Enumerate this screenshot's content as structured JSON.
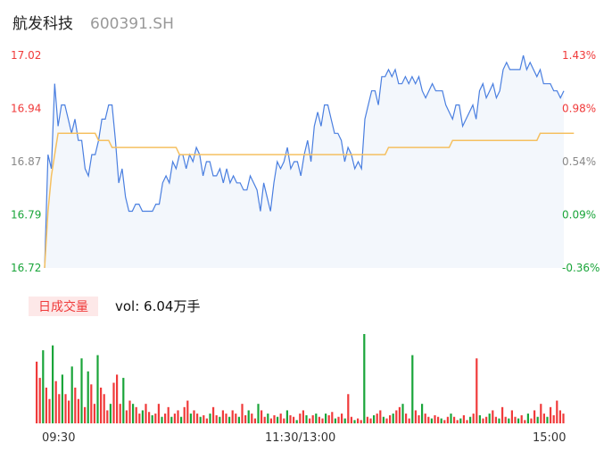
{
  "header": {
    "name": "航发科技",
    "code": "600391.SH"
  },
  "colors": {
    "price_line": "#4a7fe0",
    "avg_line": "#f5c060",
    "up": "#f03a3a",
    "down": "#1aa53a",
    "neutral": "#888888"
  },
  "volume_panel": {
    "tag": "日成交量",
    "vol_text": "vol: 6.04万手"
  },
  "chart_data": [
    {
      "type": "line",
      "x_ticks": [
        "09:30",
        "11:30/13:00",
        "15:00"
      ],
      "y_left_ticks": [
        "17.02",
        "16.94",
        "16.87",
        "16.79",
        "16.72"
      ],
      "y_right_ticks": [
        "1.43%",
        "0.98%",
        "0.54%",
        "0.09%",
        "-0.36%"
      ],
      "ylim": [
        16.72,
        17.02
      ],
      "series": [
        {
          "values": [
            16.72,
            16.88,
            16.86,
            16.98,
            16.92,
            16.95,
            16.95,
            16.93,
            16.91,
            16.93,
            16.9,
            16.9,
            16.86,
            16.85,
            16.88,
            16.88,
            16.9,
            16.93,
            16.93,
            16.95,
            16.95,
            16.9,
            16.84,
            16.86,
            16.82,
            16.8,
            16.8,
            16.81,
            16.81,
            16.8,
            16.8,
            16.8,
            16.8,
            16.81,
            16.81,
            16.84,
            16.85,
            16.84,
            16.87,
            16.86,
            16.88,
            16.88,
            16.86,
            16.88,
            16.87,
            16.89,
            16.88,
            16.85,
            16.87,
            16.87,
            16.85,
            16.85,
            16.86,
            16.84,
            16.86,
            16.84,
            16.85,
            16.84,
            16.84,
            16.83,
            16.83,
            16.85,
            16.84,
            16.83,
            16.8,
            16.84,
            16.82,
            16.8,
            16.84,
            16.87,
            16.86,
            16.87,
            16.89,
            16.86,
            16.87,
            16.87,
            16.85,
            16.88,
            16.9,
            16.87,
            16.92,
            16.94,
            16.92,
            16.95,
            16.95,
            16.93,
            16.91,
            16.91,
            16.9,
            16.87,
            16.89,
            16.88,
            16.86,
            16.87,
            16.86,
            16.93,
            16.95,
            16.97,
            16.97,
            16.95,
            16.99,
            16.99,
            17.0,
            16.99,
            17.0,
            16.98,
            16.98,
            16.99,
            16.98,
            16.99,
            16.98,
            16.99,
            16.97,
            16.96,
            16.97,
            16.98,
            16.97,
            16.97,
            16.97,
            16.95,
            16.94,
            16.93,
            16.95,
            16.95,
            16.92,
            16.93,
            16.94,
            16.95,
            16.93,
            16.97,
            16.98,
            16.96,
            16.97,
            16.98,
            16.96,
            16.97,
            17.0,
            17.01,
            17.0,
            17.0,
            17.0,
            17.0,
            17.02,
            17.0,
            17.01,
            17.0,
            16.99,
            17.0,
            16.98,
            16.98,
            16.98,
            16.97,
            16.97,
            16.96,
            16.97
          ],
          "color": "#4a7fe0"
        },
        {
          "values": [
            16.72,
            16.8,
            16.85,
            16.88,
            16.91,
            16.91,
            16.91,
            16.91,
            16.91,
            16.91,
            16.91,
            16.91,
            16.91,
            16.91,
            16.91,
            16.91,
            16.9,
            16.9,
            16.9,
            16.9,
            16.89,
            16.89,
            16.89,
            16.89,
            16.89,
            16.89,
            16.89,
            16.89,
            16.89,
            16.89,
            16.89,
            16.89,
            16.89,
            16.89,
            16.89,
            16.89,
            16.89,
            16.89,
            16.89,
            16.89,
            16.88,
            16.88,
            16.88,
            16.88,
            16.88,
            16.88,
            16.88,
            16.88,
            16.88,
            16.88,
            16.88,
            16.88,
            16.88,
            16.88,
            16.88,
            16.88,
            16.88,
            16.88,
            16.88,
            16.88,
            16.88,
            16.88,
            16.88,
            16.88,
            16.88,
            16.88,
            16.88,
            16.88,
            16.88,
            16.88,
            16.88,
            16.88,
            16.88,
            16.88,
            16.88,
            16.88,
            16.88,
            16.88,
            16.88,
            16.88,
            16.88,
            16.88,
            16.88,
            16.88,
            16.88,
            16.88,
            16.88,
            16.88,
            16.88,
            16.88,
            16.88,
            16.88,
            16.88,
            16.88,
            16.88,
            16.88,
            16.88,
            16.88,
            16.88,
            16.88,
            16.88,
            16.88,
            16.89,
            16.89,
            16.89,
            16.89,
            16.89,
            16.89,
            16.89,
            16.89,
            16.89,
            16.89,
            16.89,
            16.89,
            16.89,
            16.89,
            16.89,
            16.89,
            16.89,
            16.89,
            16.89,
            16.9,
            16.9,
            16.9,
            16.9,
            16.9,
            16.9,
            16.9,
            16.9,
            16.9,
            16.9,
            16.9,
            16.9,
            16.9,
            16.9,
            16.9,
            16.9,
            16.9,
            16.9,
            16.9,
            16.9,
            16.9,
            16.9,
            16.9,
            16.9,
            16.9,
            16.9,
            16.91,
            16.91,
            16.91,
            16.91,
            16.91,
            16.91,
            16.91,
            16.91,
            16.91,
            16.91,
            16.91
          ],
          "color": "#f5c060"
        }
      ]
    },
    {
      "type": "bar",
      "x_ticks": [
        "09:30",
        "11:30/13:00",
        "15:00"
      ],
      "values": [
        38,
        28,
        45,
        22,
        15,
        48,
        26,
        18,
        30,
        18,
        14,
        35,
        22,
        15,
        40,
        10,
        32,
        24,
        12,
        42,
        22,
        18,
        8,
        12,
        25,
        30,
        12,
        28,
        8,
        14,
        12,
        10,
        6,
        8,
        12,
        7,
        5,
        6,
        12,
        4,
        6,
        10,
        4,
        6,
        8,
        4,
        10,
        14,
        6,
        8,
        6,
        4,
        5,
        3,
        6,
        10,
        5,
        4,
        8,
        6,
        4,
        8,
        6,
        4,
        12,
        5,
        8,
        6,
        3,
        12,
        8,
        4,
        6,
        3,
        5,
        4,
        6,
        3,
        8,
        5,
        4,
        2,
        6,
        8,
        5,
        3,
        5,
        6,
        4,
        3,
        6,
        5,
        7,
        3,
        4,
        6,
        3,
        18,
        4,
        2,
        3,
        2,
        55,
        4,
        3,
        5,
        6,
        8,
        4,
        3,
        5,
        6,
        8,
        10,
        12,
        6,
        3,
        42,
        8,
        5,
        12,
        6,
        4,
        3,
        5,
        4,
        3,
        2,
        4,
        6,
        4,
        2,
        3,
        5,
        2,
        4,
        6,
        40,
        5,
        3,
        4,
        6,
        8,
        4,
        3,
        10,
        4,
        3,
        8,
        4,
        3,
        5,
        2,
        6,
        3,
        8,
        4,
        12,
        6,
        4,
        10,
        5,
        14,
        8,
        6
      ],
      "colors": [
        "up",
        "up",
        "down",
        "up",
        "up",
        "down",
        "up",
        "up",
        "down",
        "up",
        "up",
        "down",
        "up",
        "up",
        "down",
        "up",
        "down",
        "up",
        "up",
        "down",
        "up",
        "up",
        "up",
        "down",
        "up",
        "up",
        "up",
        "down",
        "up",
        "up",
        "down",
        "up",
        "up",
        "down",
        "up",
        "up",
        "down",
        "up",
        "up",
        "down",
        "up",
        "up",
        "down",
        "up",
        "up",
        "down",
        "up",
        "up",
        "down",
        "up",
        "up",
        "down",
        "up",
        "up",
        "down",
        "up",
        "up",
        "down",
        "up",
        "up",
        "down",
        "up",
        "up",
        "down",
        "up",
        "up",
        "down",
        "up",
        "up",
        "down",
        "up",
        "up",
        "down",
        "up",
        "up",
        "down",
        "up",
        "up",
        "down",
        "up",
        "up",
        "down",
        "up",
        "up",
        "down",
        "up",
        "up",
        "down",
        "up",
        "up",
        "down",
        "up",
        "up",
        "down",
        "up",
        "up",
        "down",
        "up",
        "up",
        "down",
        "up",
        "up",
        "down",
        "up",
        "up",
        "down",
        "up",
        "up",
        "down",
        "up",
        "up",
        "down",
        "up",
        "up",
        "down",
        "up",
        "up",
        "down",
        "up",
        "up",
        "down",
        "up",
        "up",
        "down",
        "up",
        "up",
        "down",
        "up",
        "up",
        "down",
        "up",
        "up",
        "down",
        "up",
        "up",
        "down",
        "up",
        "up",
        "down",
        "up",
        "up",
        "down",
        "up",
        "up",
        "down",
        "up",
        "up",
        "down",
        "up",
        "up",
        "down",
        "up",
        "up",
        "down",
        "up",
        "up",
        "down",
        "up",
        "up",
        "down",
        "up",
        "up",
        "up"
      ]
    }
  ]
}
